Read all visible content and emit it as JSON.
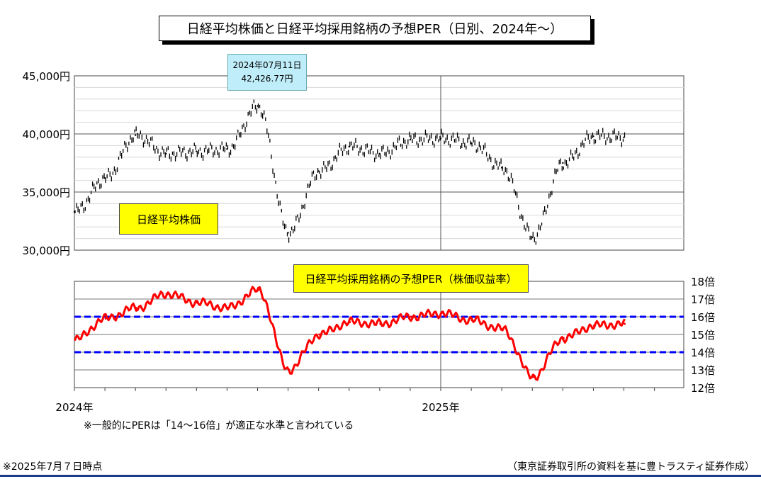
{
  "title": "日経平均株価と日経平均採用銘柄の予想PER（日別、2024年～）",
  "price_label": "日経平均株価",
  "per_label": "日経平均採用銘柄の予想PER（株価収益率）",
  "callout": {
    "date": "2024年07月11日",
    "value": "42,426.77円"
  },
  "note": "※一般的にPERは「14～16倍」が適正な水準と言われている",
  "footer_left": "※2025年7月７日時点",
  "footer_right": "（東京証券取引所の資料を基に豊トラスティ証券作成）",
  "colors": {
    "price": "#000000",
    "per": "#ff0000",
    "band": "#0000ff",
    "label_bg": "#ffff00",
    "callout_bg": "#bfeefa"
  },
  "chart_data": [
    {
      "type": "line",
      "name": "price",
      "y_ticks": [
        "30,000円",
        "35,000円",
        "40,000円",
        "45,000円"
      ],
      "ylim": [
        30000,
        45000
      ],
      "x_ticks": [
        "2024年",
        "2025年"
      ],
      "x": [
        "2024-01",
        "2024-02",
        "2024-03",
        "2024-04",
        "2024-05",
        "2024-06",
        "2024-07",
        "2024-08",
        "2024-09",
        "2024-10",
        "2024-11",
        "2024-12",
        "2025-01",
        "2025-02",
        "2025-03",
        "2025-04",
        "2025-05",
        "2025-06",
        "2025-07"
      ],
      "values": [
        33300,
        36200,
        39900,
        38300,
        38500,
        38700,
        42400,
        31500,
        36800,
        38900,
        38300,
        39500,
        39600,
        39200,
        37100,
        31100,
        37500,
        39800,
        39700
      ],
      "annotation": {
        "x": "2024-07",
        "y": 42426.77
      }
    },
    {
      "type": "line",
      "name": "per",
      "y_ticks": [
        "12倍",
        "13倍",
        "14倍",
        "15倍",
        "16倍",
        "17倍",
        "18倍"
      ],
      "ylim": [
        12,
        18
      ],
      "x": [
        "2024-01",
        "2024-02",
        "2024-03",
        "2024-04",
        "2024-05",
        "2024-06",
        "2024-07",
        "2024-08",
        "2024-09",
        "2024-10",
        "2024-11",
        "2024-12",
        "2025-01",
        "2025-02",
        "2025-03",
        "2025-04",
        "2025-05",
        "2025-06",
        "2025-07"
      ],
      "values": [
        14.7,
        15.9,
        16.5,
        17.3,
        16.8,
        16.5,
        17.5,
        13.0,
        15.0,
        15.7,
        15.6,
        16.0,
        16.2,
        15.8,
        15.3,
        12.6,
        14.8,
        15.5,
        15.6
      ],
      "bands": [
        14,
        16
      ]
    }
  ]
}
